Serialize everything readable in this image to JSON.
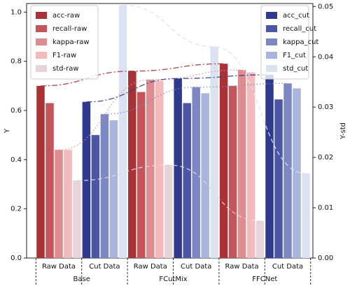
{
  "chart_data": {
    "type": "bar",
    "y_label": "Y",
    "y2_label": "Y-std",
    "categories": [
      "Raw Data",
      "Cut Data",
      "Raw Data",
      "Cut Data",
      "Raw Data",
      "Cut Data"
    ],
    "groups": [
      "Base",
      "FCutMix",
      "FFCNet"
    ],
    "ylim": [
      0,
      1.035
    ],
    "yticks": [
      {
        "value": 0,
        "label": "0.0"
      },
      {
        "value": 0.2,
        "label": "0.2"
      },
      {
        "value": 0.4,
        "label": "0.4"
      },
      {
        "value": 0.6,
        "label": "0.6"
      },
      {
        "value": 0.8,
        "label": "0.8"
      },
      {
        "value": 1,
        "label": "1.0"
      }
    ],
    "y2lim": [
      0,
      0.0506
    ],
    "y2ticks": [
      {
        "value": 0,
        "label": "0.00"
      },
      {
        "value": 0.01,
        "label": "0.01"
      },
      {
        "value": 0.02,
        "label": "0.02"
      },
      {
        "value": 0.03,
        "label": "0.03"
      },
      {
        "value": 0.04,
        "label": "0.04"
      },
      {
        "value": 0.05,
        "label": "0.05"
      }
    ],
    "series": [
      {
        "name": "acc-raw",
        "color": "#a83236",
        "values": [
          0.7,
          null,
          0.76,
          null,
          0.79,
          null
        ],
        "trend": "dashdot",
        "legend": "upper left"
      },
      {
        "name": "recall-raw",
        "color": "#c4555a",
        "values": [
          0.63,
          null,
          0.675,
          null,
          0.7,
          null
        ],
        "legend": "upper left"
      },
      {
        "name": "kappa-raw",
        "color": "#de8c90",
        "values": [
          0.44,
          null,
          0.725,
          null,
          0.765,
          null
        ],
        "trend": "dotted",
        "legend": "upper left"
      },
      {
        "name": "F1-raw",
        "color": "#f3b9bb",
        "values": [
          0.44,
          null,
          0.72,
          null,
          0.755,
          null
        ],
        "legend": "upper left"
      },
      {
        "name": "std-raw",
        "color": "#e6d5d8",
        "values": [
          0.0154,
          null,
          0.0185,
          null,
          0.0074,
          null
        ],
        "axis": "y2",
        "trend": "dashed",
        "legend": "upper left"
      },
      {
        "name": "acc_cut",
        "color": "#2f3a8e",
        "values": [
          null,
          0.635,
          null,
          0.73,
          null,
          0.745
        ],
        "trend": "dashdot",
        "legend": "upper right"
      },
      {
        "name": "recall_cut",
        "color": "#4b56a7",
        "values": [
          null,
          0.5,
          null,
          0.63,
          null,
          0.645
        ],
        "legend": "upper right"
      },
      {
        "name": "kappa_cut",
        "color": "#7c87c3",
        "values": [
          null,
          0.585,
          null,
          0.695,
          null,
          0.71
        ],
        "trend": "dotted",
        "legend": "upper right"
      },
      {
        "name": "F1_cut",
        "color": "#a9b5dc",
        "values": [
          null,
          0.56,
          null,
          0.67,
          null,
          0.69
        ],
        "legend": "upper right"
      },
      {
        "name": "std_cut",
        "color": "#dbe3f0",
        "values": [
          null,
          0.0503,
          null,
          0.042,
          null,
          0.0168
        ],
        "axis": "y2",
        "trend": "dashed",
        "legend": "upper right"
      }
    ]
  }
}
